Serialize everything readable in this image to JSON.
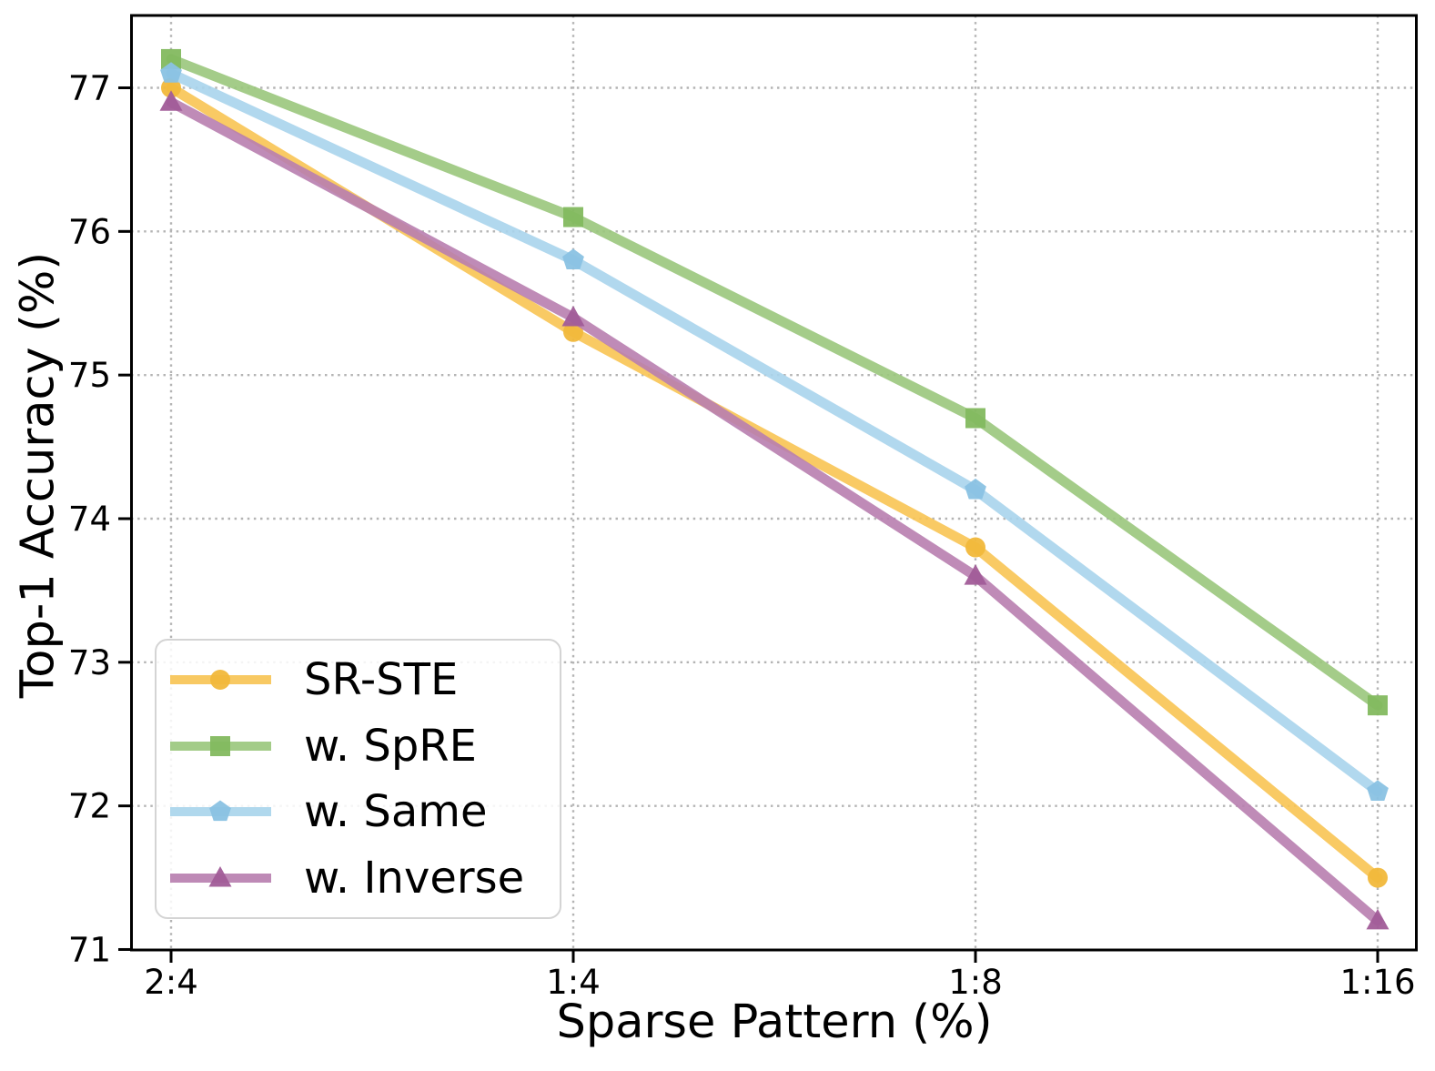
{
  "chart_data": {
    "type": "line",
    "title": "",
    "xlabel": "Sparse Pattern (%)",
    "ylabel": "Top-1 Accuracy (%)",
    "categories": [
      "2:4",
      "1:4",
      "1:8",
      "1:16"
    ],
    "series": [
      {
        "name": "SR-STE",
        "marker": "circle",
        "color": "#F8C453",
        "marker_color": "#F1B83B",
        "values": [
          77.0,
          75.3,
          73.8,
          71.5
        ]
      },
      {
        "name": "w. SpRE",
        "marker": "square",
        "color": "#9AC77C",
        "marker_color": "#83B95F",
        "values": [
          77.2,
          76.1,
          74.7,
          72.7
        ]
      },
      {
        "name": "w. Same",
        "marker": "pentagon",
        "color": "#A8D4EC",
        "marker_color": "#8AC2E3",
        "values": [
          77.1,
          75.8,
          74.2,
          72.1
        ]
      },
      {
        "name": "w. Inverse",
        "marker": "triangle",
        "color": "#B87EAF",
        "marker_color": "#A15C98",
        "values": [
          76.9,
          75.4,
          73.6,
          71.2
        ]
      }
    ],
    "yticks": [
      71,
      72,
      73,
      74,
      75,
      76,
      77
    ],
    "ylim": [
      71,
      77.5
    ],
    "grid": true,
    "legend_position": "lower left",
    "axis_color": "#000000",
    "grid_color": "#b4b4b4"
  }
}
